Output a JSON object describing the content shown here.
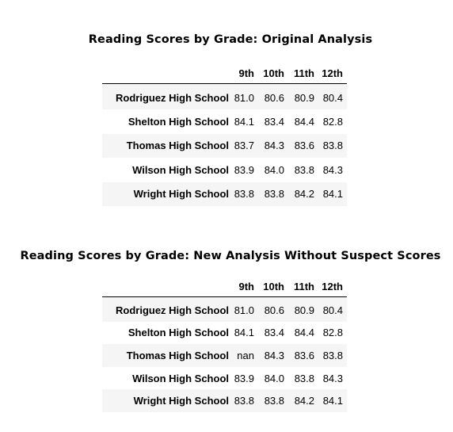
{
  "tables": [
    {
      "title": "Reading Scores by Grade: Original Analysis",
      "columns": [
        "9th",
        "10th",
        "11th",
        "12th"
      ],
      "rows": [
        {
          "school": "Rodriguez High School",
          "values": [
            "81.0",
            "80.6",
            "80.9",
            "80.4"
          ]
        },
        {
          "school": "Shelton High School",
          "values": [
            "84.1",
            "83.4",
            "84.4",
            "82.8"
          ]
        },
        {
          "school": "Thomas High School",
          "values": [
            "83.7",
            "84.3",
            "83.6",
            "83.8"
          ]
        },
        {
          "school": "Wilson High School",
          "values": [
            "83.9",
            "84.0",
            "83.8",
            "84.3"
          ]
        },
        {
          "school": "Wright High School",
          "values": [
            "83.8",
            "83.8",
            "84.2",
            "84.1"
          ]
        }
      ]
    },
    {
      "title": "Reading Scores by Grade: New Analysis Without Suspect Scores",
      "columns": [
        "9th",
        "10th",
        "11th",
        "12th"
      ],
      "rows": [
        {
          "school": "Rodriguez High School",
          "values": [
            "81.0",
            "80.6",
            "80.9",
            "80.4"
          ]
        },
        {
          "school": "Shelton High School",
          "values": [
            "84.1",
            "83.4",
            "84.4",
            "82.8"
          ]
        },
        {
          "school": "Thomas High School",
          "values": [
            "nan",
            "84.3",
            "83.6",
            "83.8"
          ]
        },
        {
          "school": "Wilson High School",
          "values": [
            "83.9",
            "84.0",
            "83.8",
            "84.3"
          ]
        },
        {
          "school": "Wright High School",
          "values": [
            "83.8",
            "83.8",
            "84.2",
            "84.1"
          ]
        }
      ]
    }
  ]
}
